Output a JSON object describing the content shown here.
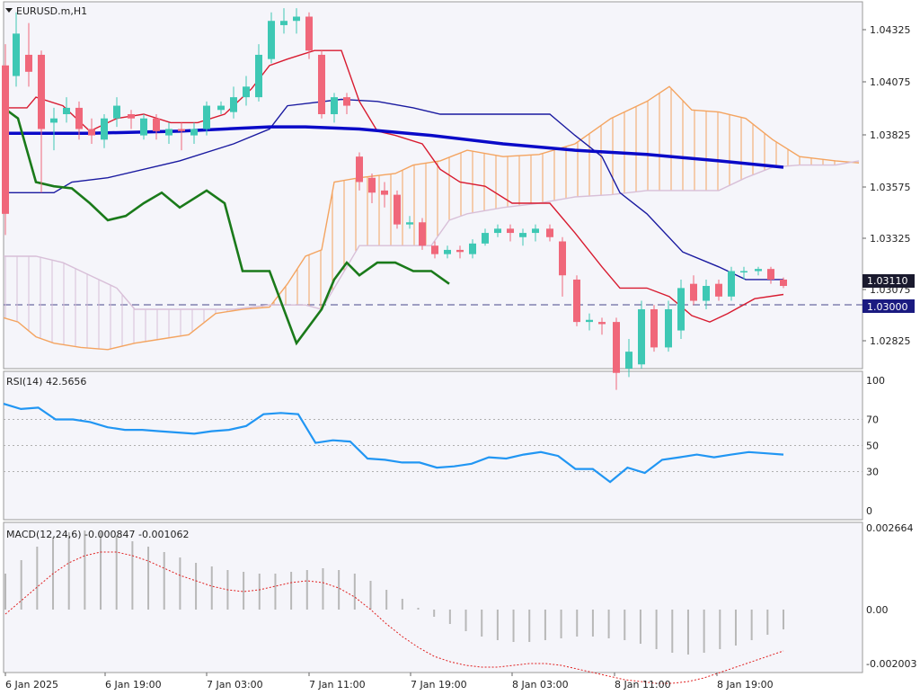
{
  "main_chart": {
    "symbol": "EURUSD.m,H1",
    "price_ticks": [
      "1.04325",
      "1.04075",
      "1.03825",
      "1.03575",
      "1.03325",
      "1.03075",
      "1.02825"
    ],
    "current_price": "1.03110",
    "horizontal_line_label": "1.03000",
    "colors": {
      "bull": "#3ec8b4",
      "bear": "#f0677a",
      "tenkan": "#d81b30",
      "kijun": "#1a1aa0",
      "chikou": "#1a7a1a",
      "span_a": "#f4a460",
      "span_b": "#d8bfd8",
      "ma": "#0a0ac8",
      "hline": "#6a6aa0"
    }
  },
  "rsi_panel": {
    "label": "RSI(14) 42.5656",
    "levels": [
      "100",
      "70",
      "50",
      "30",
      "0"
    ],
    "color": "#2196f3"
  },
  "macd_panel": {
    "label": "MACD(12,24,6) -0.000847 -0.001062",
    "levels": [
      "0.002664",
      "0.00",
      "-0.002003"
    ]
  },
  "time_axis": [
    "6 Jan 2025",
    "6 Jan 19:00",
    "7 Jan 03:00",
    "7 Jan 11:00",
    "7 Jan 19:00",
    "8 Jan 03:00",
    "8 Jan 11:00",
    "8 Jan 19:00"
  ],
  "chart_data": {
    "type": "line",
    "rsi_levels": [
      100,
      70,
      50,
      30,
      0
    ],
    "price_range": [
      1.0272,
      1.0445
    ],
    "rsi": [
      82,
      78,
      79,
      70,
      70,
      68,
      64,
      62,
      62,
      61,
      60,
      59,
      61,
      62,
      65,
      74,
      75,
      74,
      52,
      54,
      53,
      40,
      39,
      37,
      37,
      33,
      34,
      36,
      41,
      40,
      43,
      45,
      42,
      32,
      32,
      22,
      33,
      29,
      39,
      41,
      43,
      41,
      43,
      45,
      44,
      43
    ]
  }
}
